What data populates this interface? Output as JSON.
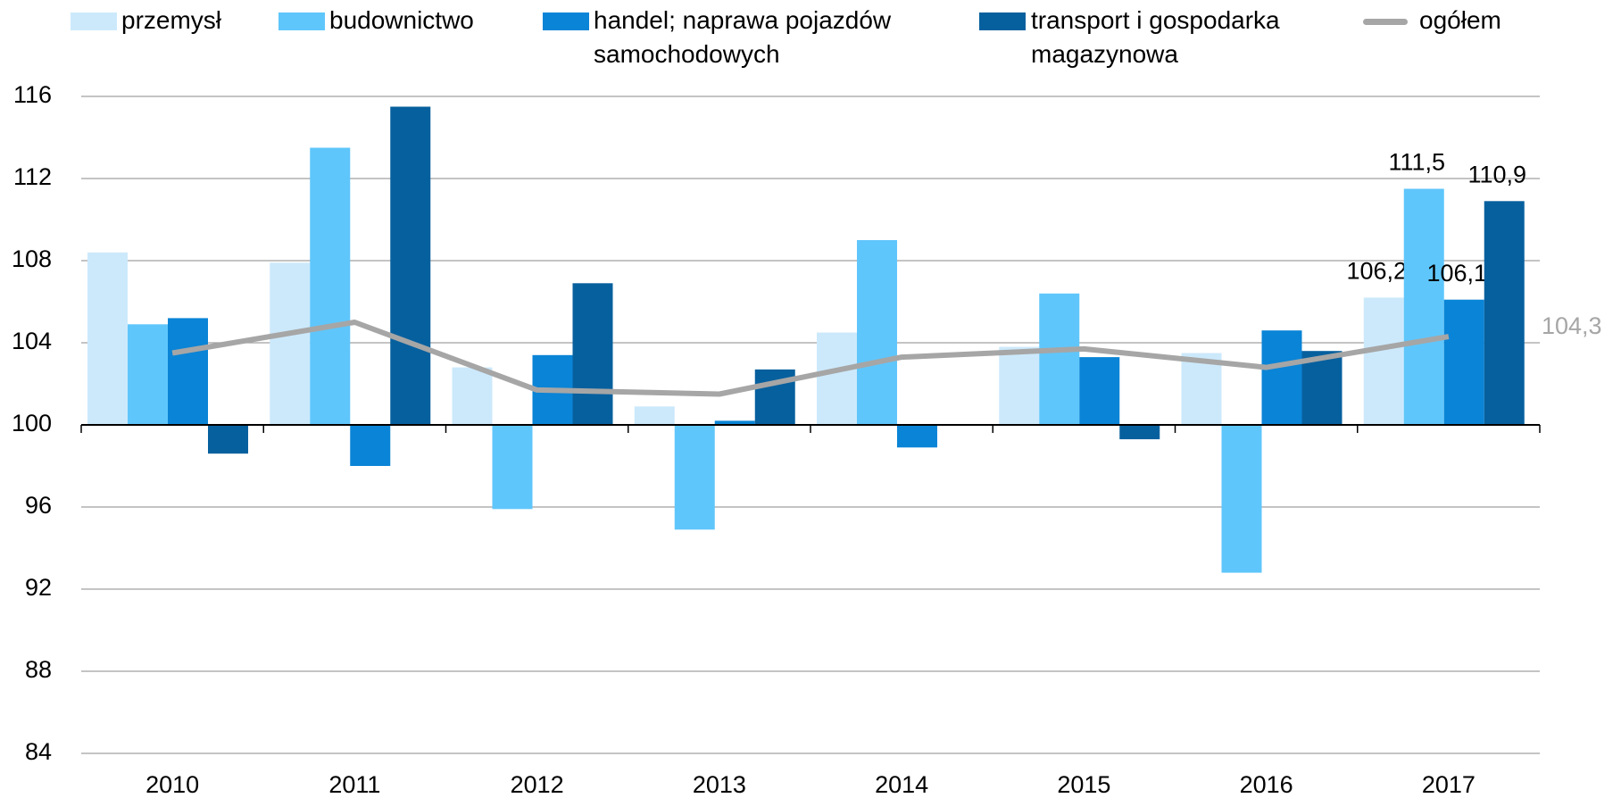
{
  "chart_data": {
    "type": "bar",
    "categories": [
      "2010",
      "2011",
      "2012",
      "2013",
      "2014",
      "2015",
      "2016",
      "2017"
    ],
    "series": [
      {
        "name": "przemysł",
        "color": "#cce9fb",
        "values": [
          108.4,
          107.9,
          102.8,
          100.9,
          104.5,
          103.8,
          103.5,
          106.2
        ],
        "value_labels": [
          null,
          null,
          null,
          null,
          null,
          null,
          null,
          "106,2"
        ]
      },
      {
        "name": "budownictwo",
        "color": "#5fc6fb",
        "values": [
          104.9,
          113.5,
          95.9,
          94.9,
          109.0,
          106.4,
          92.8,
          111.5
        ],
        "value_labels": [
          null,
          null,
          null,
          null,
          null,
          null,
          null,
          "111,5"
        ]
      },
      {
        "name": "handel; naprawa pojazdów samochodowych",
        "color": "#0a84d6",
        "values": [
          105.2,
          98.0,
          103.4,
          100.2,
          98.9,
          103.3,
          104.6,
          106.1
        ],
        "value_labels": [
          null,
          null,
          null,
          null,
          null,
          null,
          null,
          "106,1"
        ]
      },
      {
        "name": "transport i gospodarka magazynowa",
        "color": "#07609e",
        "values": [
          98.6,
          115.5,
          106.9,
          102.7,
          100.0,
          99.3,
          103.6,
          110.9
        ],
        "value_labels": [
          null,
          null,
          null,
          null,
          null,
          null,
          null,
          "110,9"
        ]
      },
      {
        "name": "ogółem",
        "color": "#a6a6a6",
        "type": "line",
        "values": [
          103.5,
          105.0,
          101.7,
          101.5,
          103.3,
          103.7,
          102.8,
          104.3
        ],
        "value_labels": [
          null,
          null,
          null,
          null,
          null,
          null,
          null,
          "104,3"
        ]
      }
    ],
    "ylim": [
      84,
      116
    ],
    "yticks": [
      84,
      88,
      92,
      96,
      100,
      104,
      108,
      112,
      116
    ],
    "grid": true,
    "baseline": 100
  }
}
